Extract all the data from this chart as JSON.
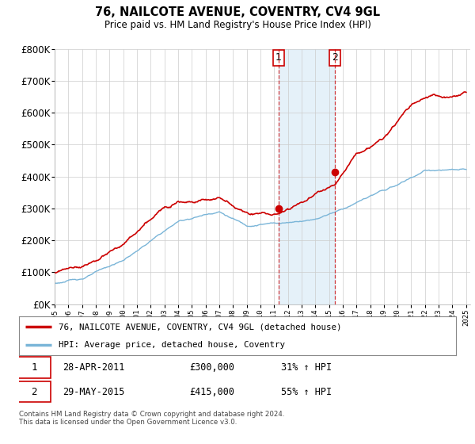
{
  "title": "76, NAILCOTE AVENUE, COVENTRY, CV4 9GL",
  "subtitle": "Price paid vs. HM Land Registry's House Price Index (HPI)",
  "ylim": [
    0,
    800000
  ],
  "yticks": [
    0,
    100000,
    200000,
    300000,
    400000,
    500000,
    600000,
    700000,
    800000
  ],
  "hpi_color": "#7ab5d8",
  "price_color": "#cc0000",
  "marker1_date": 2011.32,
  "marker2_date": 2015.41,
  "marker1_price": 300000,
  "marker2_price": 415000,
  "transaction1": {
    "label": "1",
    "date": "28-APR-2011",
    "price": "£300,000",
    "hpi": "31% ↑ HPI"
  },
  "transaction2": {
    "label": "2",
    "date": "29-MAY-2015",
    "price": "£415,000",
    "hpi": "55% ↑ HPI"
  },
  "legend_house_label": "76, NAILCOTE AVENUE, COVENTRY, CV4 9GL (detached house)",
  "legend_hpi_label": "HPI: Average price, detached house, Coventry",
  "footnote": "Contains HM Land Registry data © Crown copyright and database right 2024.\nThis data is licensed under the Open Government Licence v3.0.",
  "background_color": "#ffffff",
  "grid_color": "#cccccc",
  "xmin": 1995,
  "xmax": 2025
}
